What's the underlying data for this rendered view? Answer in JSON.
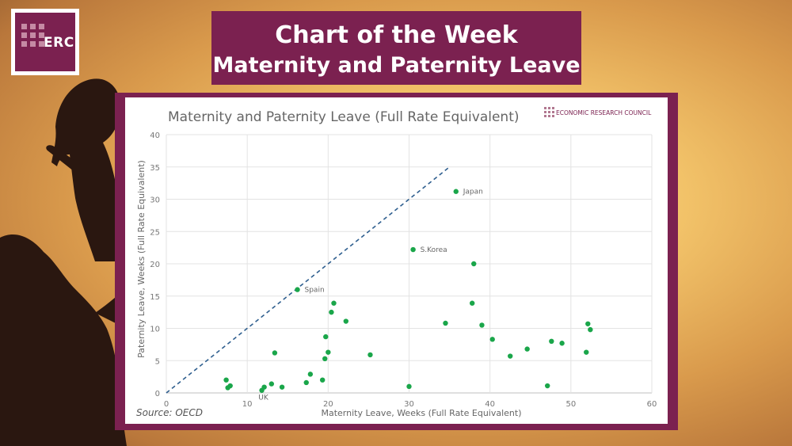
{
  "header": {
    "logo_text": "ERC",
    "title_line1": "Chart of the Week",
    "title_line2": "Maternity and Paternity Leave"
  },
  "colors": {
    "brand": "#7b2150",
    "point": "#1aa64a",
    "reference_line": "#2f5f8f"
  },
  "chart_data": {
    "type": "scatter",
    "title": "Maternity and Paternity Leave (Full Rate Equivalent)",
    "xlabel": "Maternity Leave, Weeks (Full Rate Equivalent)",
    "ylabel": "Paternity Leave, Weeks (Full Rate Equivalent)",
    "xlim": [
      0,
      60
    ],
    "ylim": [
      0,
      40
    ],
    "xticks": [
      0,
      10,
      20,
      30,
      40,
      50,
      60
    ],
    "yticks": [
      0,
      5,
      10,
      15,
      20,
      25,
      30,
      35,
      40
    ],
    "grid": true,
    "source": "Source: OECD",
    "org_label": "ECONOMIC RESEARCH COUNCIL",
    "reference_line": {
      "x": [
        0,
        35
      ],
      "y": [
        0,
        35
      ]
    },
    "points": [
      {
        "x": 7.4,
        "y": 2.0
      },
      {
        "x": 7.6,
        "y": 0.8
      },
      {
        "x": 7.9,
        "y": 1.1
      },
      {
        "x": 11.8,
        "y": 0.4,
        "label": "UK"
      },
      {
        "x": 12.1,
        "y": 0.9
      },
      {
        "x": 13.0,
        "y": 1.4
      },
      {
        "x": 13.4,
        "y": 6.2
      },
      {
        "x": 14.3,
        "y": 0.9
      },
      {
        "x": 16.2,
        "y": 16.0,
        "label": "Spain"
      },
      {
        "x": 17.3,
        "y": 1.6
      },
      {
        "x": 17.8,
        "y": 2.9
      },
      {
        "x": 19.3,
        "y": 2.0
      },
      {
        "x": 19.6,
        "y": 5.3
      },
      {
        "x": 19.7,
        "y": 8.7
      },
      {
        "x": 20.0,
        "y": 6.3
      },
      {
        "x": 20.4,
        "y": 12.5
      },
      {
        "x": 20.7,
        "y": 13.9
      },
      {
        "x": 22.2,
        "y": 11.1
      },
      {
        "x": 25.2,
        "y": 5.9
      },
      {
        "x": 30.0,
        "y": 1.0
      },
      {
        "x": 30.5,
        "y": 22.2,
        "label": "S.Korea"
      },
      {
        "x": 34.5,
        "y": 10.8
      },
      {
        "x": 35.8,
        "y": 31.2,
        "label": "Japan"
      },
      {
        "x": 37.8,
        "y": 13.9
      },
      {
        "x": 38.0,
        "y": 20.0
      },
      {
        "x": 39.0,
        "y": 10.5
      },
      {
        "x": 40.3,
        "y": 8.3
      },
      {
        "x": 42.5,
        "y": 5.7
      },
      {
        "x": 44.6,
        "y": 6.8
      },
      {
        "x": 47.1,
        "y": 1.1
      },
      {
        "x": 47.6,
        "y": 8.0
      },
      {
        "x": 48.9,
        "y": 7.7
      },
      {
        "x": 51.9,
        "y": 6.3
      },
      {
        "x": 52.1,
        "y": 10.7
      },
      {
        "x": 52.4,
        "y": 9.8
      }
    ]
  }
}
